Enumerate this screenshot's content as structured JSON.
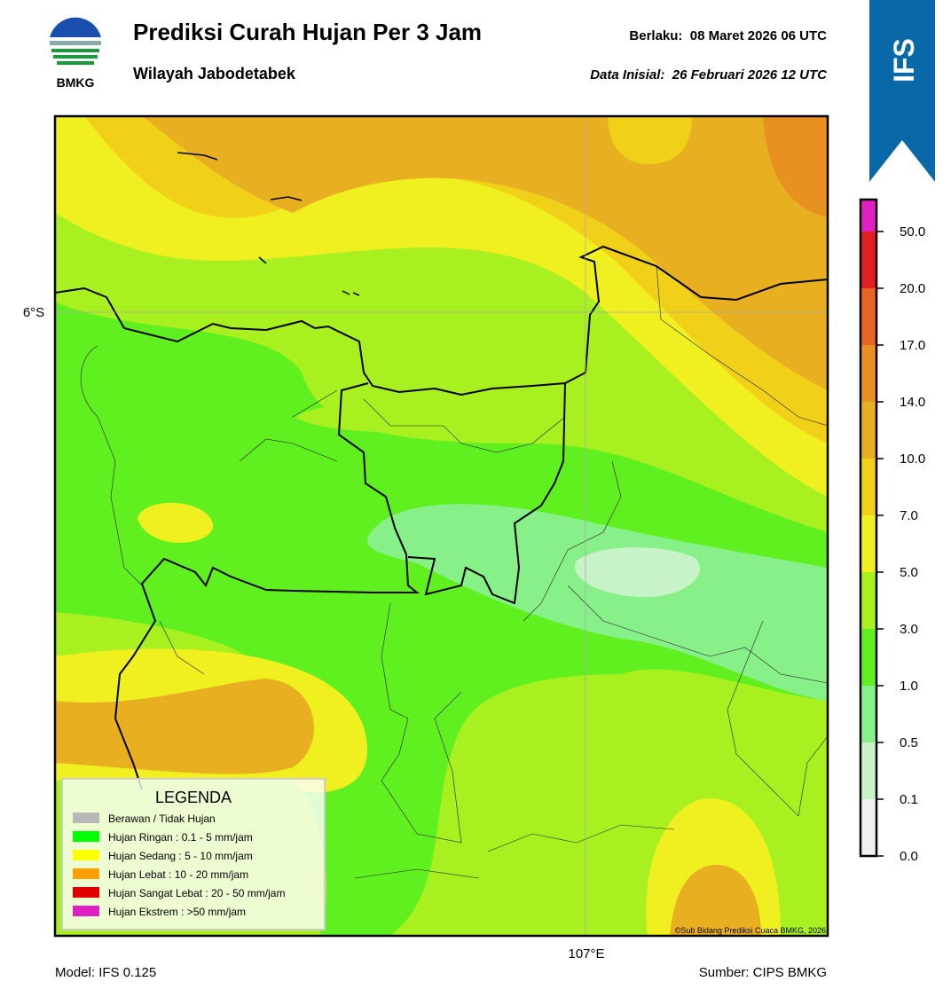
{
  "header": {
    "logo_text": "BMKG",
    "title": "Prediksi Curah Hujan Per 3 Jam",
    "subtitle": "Wilayah Jabodetabek",
    "valid_label": "Berlaku:  08 Maret 2026 06 UTC",
    "init_label": "Data Inisial:  26 Februari 2026 12 UTC",
    "model_badge": "IFS"
  },
  "map": {
    "lat_label": "6°S",
    "lon_label": "107°E",
    "credit": "©Sub Bidang Prediksi Cuaca BMKG, 2026"
  },
  "colorbar": {
    "colors": [
      "#f0f0f0",
      "#c8f2c8",
      "#88f088",
      "#60f020",
      "#a8f020",
      "#f0f020",
      "#f0d018",
      "#e8b020",
      "#e89020",
      "#e86420",
      "#e02020",
      "#e020c0"
    ],
    "ticks": [
      {
        "value": 0,
        "label": "0.0"
      },
      {
        "value": 0.1,
        "label": "0.1"
      },
      {
        "value": 0.5,
        "label": "0.5"
      },
      {
        "value": 1,
        "label": "1.0"
      },
      {
        "value": 3,
        "label": "3.0"
      },
      {
        "value": 5,
        "label": "5.0"
      },
      {
        "value": 7,
        "label": "7.0"
      },
      {
        "value": 10,
        "label": "10.0"
      },
      {
        "value": 14,
        "label": "14.0"
      },
      {
        "value": 17,
        "label": "17.0"
      },
      {
        "value": 20,
        "label": "20.0"
      },
      {
        "value": 50,
        "label": "50.0"
      }
    ]
  },
  "legend": {
    "title": "LEGENDA",
    "items": [
      {
        "label": "Berawan / Tidak Hujan",
        "color": "#b8b8b8"
      },
      {
        "label": "Hujan Ringan : 0.1 - 5 mm/jam",
        "color": "#00ff00"
      },
      {
        "label": "Hujan Sedang : 5 - 10 mm/jam",
        "color": "#ffff00"
      },
      {
        "label": "Hujan Lebat : 10 - 20 mm/jam",
        "color": "#ffa000"
      },
      {
        "label": "Hujan Sangat Lebat : 20 - 50 mm/jam",
        "color": "#e00000"
      },
      {
        "label": "Hujan Ekstrem : >50 mm/jam",
        "color": "#e020c0"
      }
    ]
  },
  "footer": {
    "model": "Model: IFS 0.125",
    "source": "Sumber: CIPS BMKG"
  }
}
